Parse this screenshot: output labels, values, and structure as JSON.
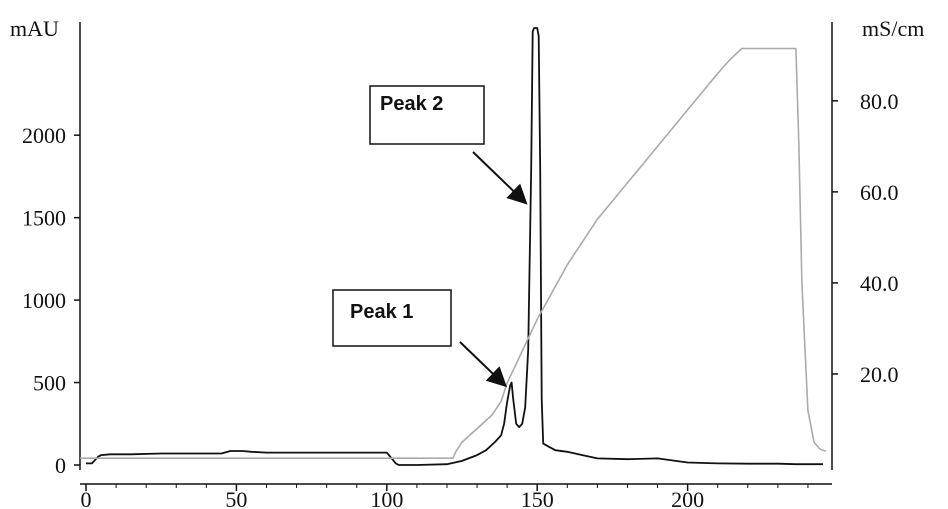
{
  "chart_data": {
    "type": "line",
    "title": "",
    "left_axis": {
      "unit": "mAU",
      "ylim": [
        0,
        2650
      ],
      "ticks": [
        0,
        500,
        1000,
        1500,
        2000
      ],
      "tick_labels": [
        "0",
        "500",
        "1000",
        "1500",
        "2000"
      ]
    },
    "right_axis": {
      "unit": "mS/cm",
      "ylim": [
        0,
        96
      ],
      "ticks": [
        20,
        40,
        60,
        80
      ],
      "tick_labels": [
        "20.0",
        "40.0",
        "60.0",
        "80.0"
      ]
    },
    "x_axis": {
      "xlim": [
        -2,
        248
      ],
      "ticks": [
        0,
        50,
        100,
        150,
        200
      ],
      "tick_labels": [
        "0",
        "50",
        "100",
        "150",
        "200"
      ]
    },
    "grid": false,
    "legend": "none",
    "series": [
      {
        "axis": "left",
        "color": "#111111",
        "x": [
          0,
          1,
          2,
          4,
          5,
          8,
          15,
          25,
          35,
          45,
          48,
          52,
          55,
          60,
          70,
          80,
          90,
          100,
          103,
          104,
          110,
          120,
          125,
          130,
          133,
          136,
          138,
          139,
          140,
          141,
          141.5,
          142,
          143,
          144,
          145,
          146,
          147,
          148,
          148.5,
          149,
          150,
          150.5,
          151,
          151.5,
          152,
          154,
          156,
          160,
          165,
          170,
          180,
          190,
          200,
          210,
          220,
          230,
          236,
          240,
          245
        ],
        "y": [
          10,
          10,
          10,
          50,
          60,
          65,
          65,
          70,
          70,
          70,
          85,
          85,
          80,
          75,
          75,
          75,
          75,
          75,
          10,
          0,
          0,
          5,
          25,
          60,
          90,
          140,
          180,
          250,
          380,
          480,
          500,
          400,
          250,
          230,
          250,
          350,
          700,
          1800,
          2630,
          2650,
          2650,
          2600,
          1800,
          400,
          130,
          110,
          90,
          80,
          60,
          40,
          35,
          40,
          15,
          10,
          8,
          8,
          5,
          5,
          5
        ]
      },
      {
        "axis": "right",
        "color": "#aaaaaa",
        "x": [
          -2,
          0,
          5,
          50,
          100,
          103,
          110,
          120,
          122,
          123,
          125,
          130,
          135,
          138,
          140,
          145,
          150,
          155,
          160,
          170,
          180,
          190,
          200,
          210,
          214,
          218,
          225,
          230,
          235,
          236,
          237,
          238,
          240,
          242,
          244,
          246
        ],
        "y": [
          1.5,
          1.5,
          1.5,
          1.5,
          1.5,
          1.5,
          1.5,
          1.5,
          1.5,
          3.0,
          5.0,
          8.0,
          11.0,
          14.0,
          18.0,
          25.0,
          32.0,
          38.0,
          44.0,
          54.0,
          62.0,
          70.0,
          78.0,
          86.0,
          89.0,
          91.5,
          91.5,
          91.5,
          91.5,
          91.5,
          70.0,
          40.0,
          12.0,
          5.0,
          3.5,
          3.0
        ]
      }
    ],
    "annotations": [
      {
        "text": "Peak 1",
        "x": 141,
        "y": 500
      },
      {
        "text": "Peak 2",
        "x": 146.5,
        "y": 1620
      }
    ]
  }
}
